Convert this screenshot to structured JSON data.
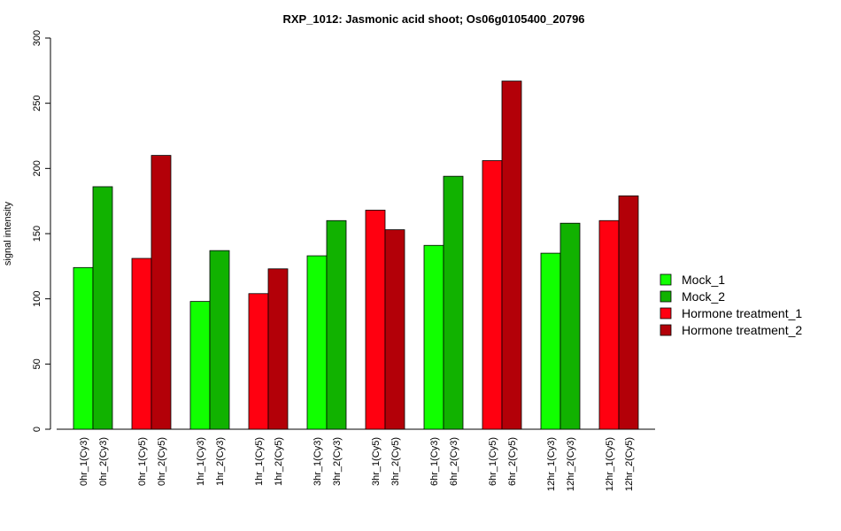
{
  "chart_data": {
    "type": "bar",
    "title": "RXP_1012: Jasmonic acid shoot; Os06g0105400_20796",
    "xlabel": "",
    "ylabel": "signal intensity",
    "ylim": [
      0,
      300
    ],
    "yticks": [
      0,
      50,
      100,
      150,
      200,
      250,
      300
    ],
    "grid": false,
    "legend_position": "right",
    "series": [
      {
        "name": "Mock_1",
        "color": "#11ff00"
      },
      {
        "name": "Mock_2",
        "color": "#11b200"
      },
      {
        "name": "Hormone treatment_1",
        "color": "#ff0010"
      },
      {
        "name": "Hormone treatment_2",
        "color": "#b30008"
      }
    ],
    "bars": [
      {
        "label": "0hr_1(Cy3)",
        "value": 124,
        "series": 0
      },
      {
        "label": "0hr_2(Cy3)",
        "value": 186,
        "series": 1
      },
      {
        "label": "0hr_1(Cy5)",
        "value": 131,
        "series": 2
      },
      {
        "label": "0hr_2(Cy5)",
        "value": 210,
        "series": 3
      },
      {
        "label": "1hr_1(Cy3)",
        "value": 98,
        "series": 0
      },
      {
        "label": "1hr_2(Cy3)",
        "value": 137,
        "series": 1
      },
      {
        "label": "1hr_1(Cy5)",
        "value": 104,
        "series": 2
      },
      {
        "label": "1hr_2(Cy5)",
        "value": 123,
        "series": 3
      },
      {
        "label": "3hr_1(Cy3)",
        "value": 133,
        "series": 0
      },
      {
        "label": "3hr_2(Cy3)",
        "value": 160,
        "series": 1
      },
      {
        "label": "3hr_1(Cy5)",
        "value": 168,
        "series": 2
      },
      {
        "label": "3hr_2(Cy5)",
        "value": 153,
        "series": 3
      },
      {
        "label": "6hr_1(Cy3)",
        "value": 141,
        "series": 0
      },
      {
        "label": "6hr_2(Cy3)",
        "value": 194,
        "series": 1
      },
      {
        "label": "6hr_1(Cy5)",
        "value": 206,
        "series": 2
      },
      {
        "label": "6hr_2(Cy5)",
        "value": 267,
        "series": 3
      },
      {
        "label": "12hr_1(Cy3)",
        "value": 135,
        "series": 0
      },
      {
        "label": "12hr_2(Cy3)",
        "value": 158,
        "series": 1
      },
      {
        "label": "12hr_1(Cy5)",
        "value": 160,
        "series": 2
      },
      {
        "label": "12hr_2(Cy5)",
        "value": 179,
        "series": 3
      }
    ]
  }
}
